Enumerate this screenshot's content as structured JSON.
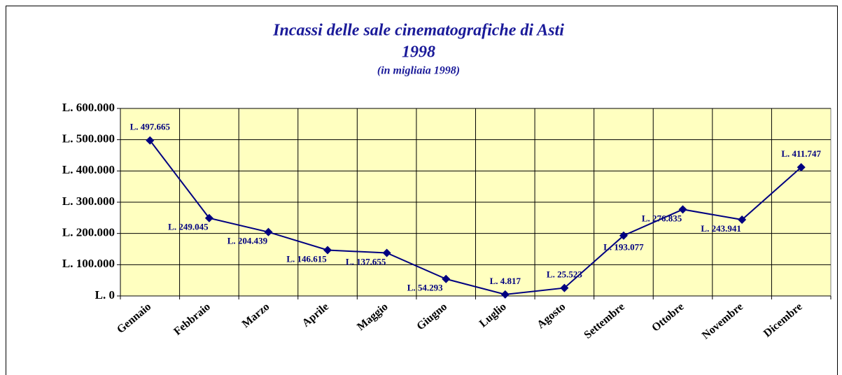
{
  "chart_data": {
    "type": "line",
    "title": "Incassi delle sale cinematografiche di Asti",
    "title_year": "1998",
    "subtitle": "(in migliaia 1998)",
    "categories": [
      "Gennaio",
      "Febbraio",
      "Marzo",
      "Aprile",
      "Maggio",
      "Giugno",
      "Luglio",
      "Agosto",
      "Settembre",
      "Ottobre",
      "Novembre",
      "Dicembre"
    ],
    "values": [
      497665,
      249045,
      204439,
      146615,
      137655,
      54293,
      4817,
      25523,
      193077,
      276835,
      243941,
      411747
    ],
    "value_labels": [
      "L. 497.665",
      "L. 249.045",
      "L. 204.439",
      "L. 146.615",
      "L. 137.655",
      "L. 54.293",
      "L. 4.817",
      "L. 25.523",
      "L. 193.077",
      "L. 276.835",
      "L. 243.941",
      "L. 411.747"
    ],
    "color": "#000080",
    "ylim": [
      0,
      600000
    ],
    "yticks": [
      {
        "value": 0,
        "label": "L. 0"
      },
      {
        "value": 100000,
        "label": "L. 100.000"
      },
      {
        "value": 200000,
        "label": "L. 200.000"
      },
      {
        "value": 300000,
        "label": "L. 300.000"
      },
      {
        "value": 400000,
        "label": "L. 400.000"
      },
      {
        "value": 500000,
        "label": "L. 500.000"
      },
      {
        "value": 600000,
        "label": "L. 600.000"
      }
    ],
    "grid": true
  }
}
